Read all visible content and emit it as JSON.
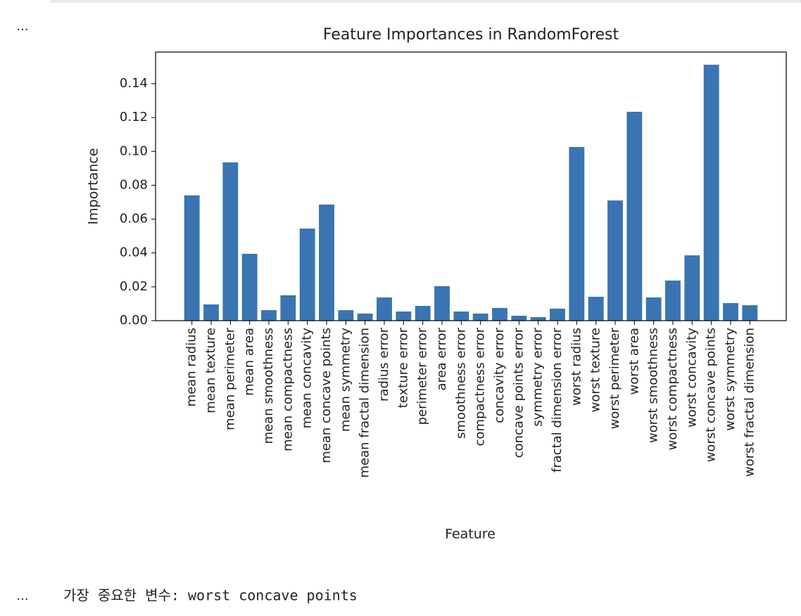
{
  "prompts": [
    "...",
    "..."
  ],
  "output_text": "가장 중요한 변수: worst concave points",
  "chart_data": {
    "type": "bar",
    "title": "Feature Importances in RandomForest",
    "x_label": "Feature",
    "y_label": "Importance",
    "color": "#3a74b2",
    "categories": [
      "mean radius",
      "mean texture",
      "mean perimeter",
      "mean area",
      "mean smoothness",
      "mean compactness",
      "mean concavity",
      "mean concave points",
      "mean symmetry",
      "mean fractal dimension",
      "radius error",
      "texture error",
      "perimeter error",
      "area error",
      "smoothness error",
      "compactness error",
      "concavity error",
      "concave points error",
      "symmetry error",
      "fractal dimension error",
      "worst radius",
      "worst texture",
      "worst perimeter",
      "worst area",
      "worst smoothness",
      "worst compactness",
      "worst concavity",
      "worst concave points",
      "worst symmetry",
      "worst fractal dimension"
    ],
    "values": [
      0.074,
      0.0096,
      0.0935,
      0.0395,
      0.0062,
      0.015,
      0.0544,
      0.0686,
      0.0062,
      0.0042,
      0.0137,
      0.0054,
      0.0087,
      0.0204,
      0.0054,
      0.0042,
      0.0075,
      0.0029,
      0.0021,
      0.0071,
      0.1026,
      0.0141,
      0.071,
      0.1234,
      0.0137,
      0.0237,
      0.0386,
      0.1512,
      0.0104,
      0.0091
    ],
    "ylim": [
      0,
      0.1587
    ],
    "yticks": [
      {
        "value": 0,
        "label": "0.00"
      },
      {
        "value": 0.02,
        "label": "0.02"
      },
      {
        "value": 0.04,
        "label": "0.04"
      },
      {
        "value": 0.06,
        "label": "0.06"
      },
      {
        "value": 0.08,
        "label": "0.08"
      },
      {
        "value": 0.1,
        "label": "0.10"
      },
      {
        "value": 0.12,
        "label": "0.12"
      },
      {
        "value": 0.14,
        "label": "0.14"
      }
    ]
  }
}
